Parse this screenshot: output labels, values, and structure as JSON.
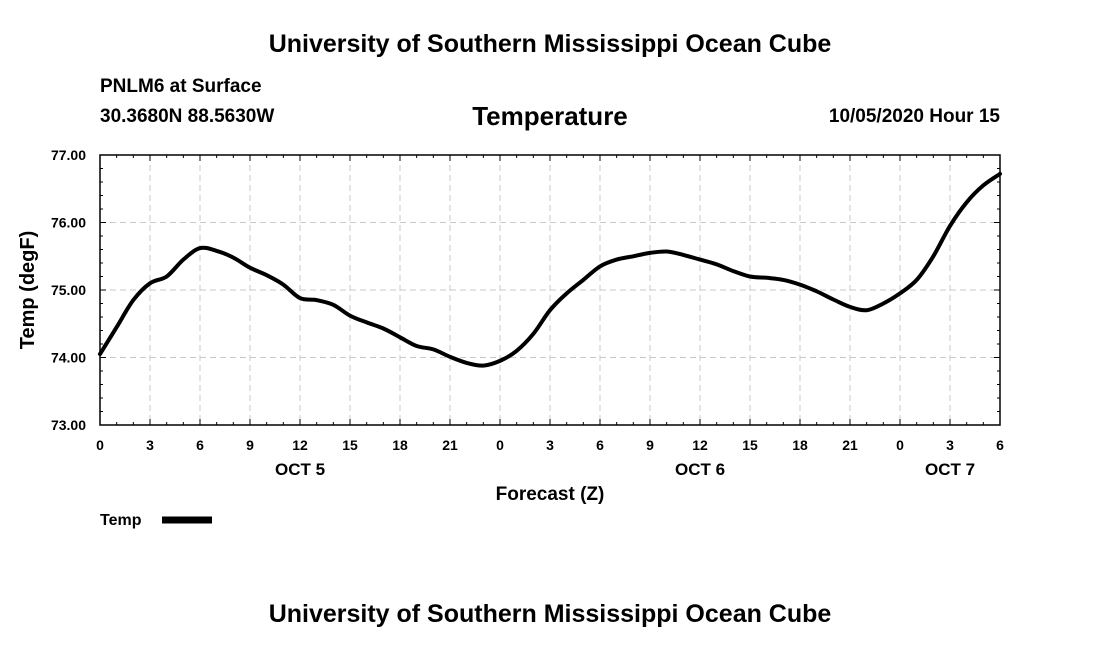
{
  "header": {
    "title": "University of Southern Mississippi Ocean Cube",
    "station": "PNLM6 at Surface",
    "coords": "30.3680N 88.5630W",
    "chart_title": "Temperature",
    "datetime": "10/05/2020 Hour 15"
  },
  "footer": {
    "title": "University of Southern Mississippi Ocean Cube"
  },
  "chart_data": {
    "type": "line",
    "title": "Temperature",
    "xlabel": "Forecast (Z)",
    "ylabel": "Temp (degF)",
    "ylim": [
      73.0,
      77.0
    ],
    "xlim": [
      0,
      54
    ],
    "yticks": [
      73.0,
      74.0,
      75.0,
      76.0,
      77.0
    ],
    "ytick_labels": [
      "73.00",
      "74.00",
      "75.00",
      "76.00",
      "77.00"
    ],
    "xticks": [
      0,
      3,
      6,
      9,
      12,
      15,
      18,
      21,
      24,
      27,
      30,
      33,
      36,
      39,
      42,
      45,
      48,
      51,
      54
    ],
    "xtick_labels": [
      "0",
      "3",
      "6",
      "9",
      "12",
      "15",
      "18",
      "21",
      "0",
      "3",
      "6",
      "9",
      "12",
      "15",
      "18",
      "21",
      "0",
      "3",
      "6"
    ],
    "day_labels": [
      {
        "label": "OCT 5",
        "x": 12
      },
      {
        "label": "OCT 6",
        "x": 36
      },
      {
        "label": "OCT 7",
        "x": 51
      }
    ],
    "grid": true,
    "legend_position": "bottom-left",
    "series": [
      {
        "name": "Temp",
        "color": "#000000",
        "x": [
          0,
          1,
          2,
          3,
          4,
          5,
          6,
          7,
          8,
          9,
          10,
          11,
          12,
          13,
          14,
          15,
          16,
          17,
          18,
          19,
          20,
          21,
          22,
          23,
          24,
          25,
          26,
          27,
          28,
          29,
          30,
          31,
          32,
          33,
          34,
          35,
          36,
          37,
          38,
          39,
          40,
          41,
          42,
          43,
          44,
          45,
          46,
          47,
          48,
          49,
          50,
          51,
          52,
          53,
          54
        ],
        "values": [
          74.05,
          74.45,
          74.85,
          75.1,
          75.2,
          75.45,
          75.62,
          75.58,
          75.48,
          75.33,
          75.22,
          75.08,
          74.88,
          74.85,
          74.78,
          74.62,
          74.52,
          74.43,
          74.3,
          74.17,
          74.12,
          74.01,
          73.92,
          73.88,
          73.95,
          74.1,
          74.35,
          74.7,
          74.95,
          75.15,
          75.35,
          75.45,
          75.5,
          75.55,
          75.57,
          75.52,
          75.45,
          75.38,
          75.28,
          75.2,
          75.18,
          75.15,
          75.08,
          74.98,
          74.86,
          74.75,
          74.7,
          74.8,
          74.95,
          75.15,
          75.5,
          75.95,
          76.3,
          76.55,
          76.72
        ]
      }
    ]
  }
}
